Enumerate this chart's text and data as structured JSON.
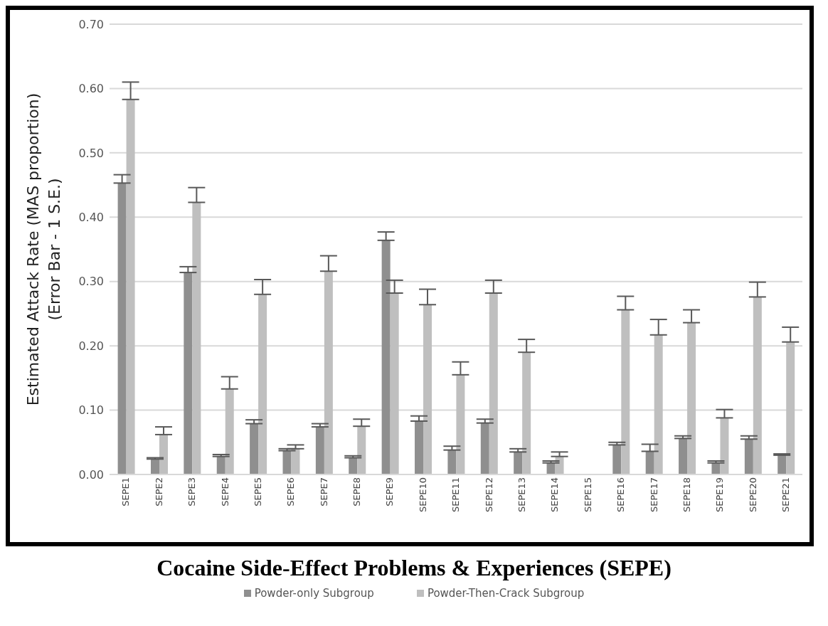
{
  "chart_data": {
    "type": "bar",
    "title": "Cocaine Side-Effect Problems & Experiences (SEPE)",
    "ylabel": "Estimated Attack Rate (MAS proportion)\n(Error Bar - 1 S.E.)",
    "categories": [
      "SEPE1",
      "SEPE2",
      "SEPE3",
      "SEPE4",
      "SEPE5",
      "SEPE6",
      "SEPE7",
      "SEPE8",
      "SEPE9",
      "SEPE10",
      "SEPE11",
      "SEPE12",
      "SEPE13",
      "SEPE14",
      "SEPE15",
      "SEPE16",
      "SEPE17",
      "SEPE18",
      "SEPE19",
      "SEPE20",
      "SEPE21"
    ],
    "series": [
      {
        "name": "Powder-only Subgroup",
        "color": "#8f8f8f",
        "values": [
          0.453,
          0.024,
          0.314,
          0.028,
          0.079,
          0.037,
          0.074,
          0.026,
          0.364,
          0.083,
          0.038,
          0.08,
          0.035,
          0.018,
          null,
          0.046,
          0.036,
          0.056,
          0.018,
          0.055,
          0.03
        ],
        "errors": [
          [
            0.453,
            0.466
          ],
          [
            0.024,
            0.026
          ],
          [
            0.314,
            0.323
          ],
          [
            0.028,
            0.031
          ],
          [
            0.079,
            0.085
          ],
          [
            0.037,
            0.04
          ],
          [
            0.074,
            0.079
          ],
          [
            0.026,
            0.029
          ],
          [
            0.364,
            0.377
          ],
          [
            0.083,
            0.091
          ],
          [
            0.038,
            0.044
          ],
          [
            0.08,
            0.086
          ],
          [
            0.035,
            0.04
          ],
          [
            0.018,
            0.021
          ],
          null,
          [
            0.046,
            0.05
          ],
          [
            0.036,
            0.047
          ],
          [
            0.056,
            0.06
          ],
          [
            0.018,
            0.021
          ],
          [
            0.055,
            0.06
          ],
          [
            0.03,
            0.032
          ]
        ]
      },
      {
        "name": "Powder-Then-Crack Subgroup",
        "color": "#bfbfbf",
        "values": [
          0.583,
          0.062,
          0.423,
          0.133,
          0.28,
          0.04,
          0.316,
          0.075,
          0.282,
          0.264,
          0.155,
          0.282,
          0.19,
          0.028,
          null,
          0.256,
          0.217,
          0.236,
          0.088,
          0.276,
          0.206
        ],
        "errors": [
          [
            0.583,
            0.61
          ],
          [
            0.062,
            0.074
          ],
          [
            0.423,
            0.446
          ],
          [
            0.133,
            0.152
          ],
          [
            0.28,
            0.303
          ],
          [
            0.04,
            0.046
          ],
          [
            0.316,
            0.34
          ],
          [
            0.075,
            0.086
          ],
          [
            0.282,
            0.302
          ],
          [
            0.264,
            0.288
          ],
          [
            0.155,
            0.175
          ],
          [
            0.282,
            0.302
          ],
          [
            0.19,
            0.21
          ],
          [
            0.028,
            0.035
          ],
          null,
          [
            0.256,
            0.277
          ],
          [
            0.217,
            0.241
          ],
          [
            0.236,
            0.256
          ],
          [
            0.088,
            0.101
          ],
          [
            0.276,
            0.299
          ],
          [
            0.206,
            0.229
          ]
        ]
      }
    ],
    "ylim": [
      0,
      0.7
    ],
    "yticks": [
      {
        "value": 0,
        "label": "0.00"
      },
      {
        "value": 0.1,
        "label": "0.10"
      },
      {
        "value": 0.2,
        "label": "0.20"
      },
      {
        "value": 0.3,
        "label": "0.30"
      },
      {
        "value": 0.4,
        "label": "0.40"
      },
      {
        "value": 0.5,
        "label": "0.50"
      },
      {
        "value": 0.6,
        "label": "0.60"
      },
      {
        "value": 0.7,
        "label": "0.70"
      }
    ],
    "grid": "y",
    "legend": "bottom"
  }
}
